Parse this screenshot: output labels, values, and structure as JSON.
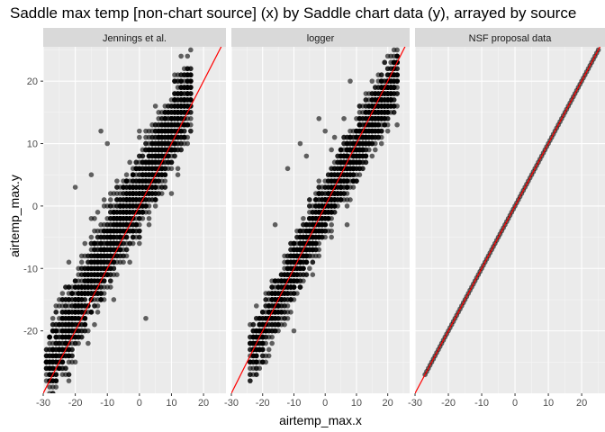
{
  "chart_data": {
    "type": "scatter",
    "title": "Saddle max temp [non-chart source] (x) by Saddle chart data (y), arrayed by source",
    "xlabel": "airtemp_max.x",
    "ylabel": "airtemp_max.y",
    "xlim": [
      -30,
      27
    ],
    "ylim": [
      -30,
      25.5
    ],
    "x_ticks": [
      -30,
      -20,
      -10,
      0,
      10,
      20
    ],
    "x_tick_labels": [
      "-30",
      "-20",
      "-10",
      "0",
      "10",
      "20"
    ],
    "y_ticks": [
      -20,
      -10,
      0,
      10,
      20
    ],
    "y_tick_labels": [
      "-20",
      "-10",
      "0",
      "10",
      "20"
    ],
    "point_color": "#000000",
    "point_alpha": 0.6,
    "reference_line": {
      "slope": 1,
      "intercept": 0,
      "color": "#ff0000"
    },
    "grid": true,
    "facets": [
      {
        "label": "Jennings et al.",
        "trend_sample": [
          [
            -29,
            -26
          ],
          [
            -25,
            -22
          ],
          [
            -20,
            -17
          ],
          [
            -15,
            -12
          ],
          [
            -10,
            -7
          ],
          [
            -5,
            -2
          ],
          [
            0,
            2
          ],
          [
            5,
            7
          ],
          [
            10,
            12
          ],
          [
            15,
            18
          ]
        ],
        "x_range": [
          -29,
          16
        ],
        "scatter_sd": 3,
        "outliers": [
          [
            -22,
            -27
          ],
          [
            -12,
            12
          ],
          [
            -10,
            10
          ],
          [
            -20,
            3
          ],
          [
            -15,
            5
          ],
          [
            0,
            12
          ],
          [
            2,
            -18
          ]
        ]
      },
      {
        "label": "logger",
        "trend_sample": [
          [
            -24,
            -24
          ],
          [
            -20,
            -20
          ],
          [
            -15,
            -15
          ],
          [
            -10,
            -10
          ],
          [
            -5,
            -5
          ],
          [
            0,
            0
          ],
          [
            5,
            5
          ],
          [
            10,
            9
          ],
          [
            15,
            14
          ],
          [
            20,
            18
          ],
          [
            22,
            20
          ]
        ],
        "x_range": [
          -24,
          23
        ],
        "scatter_sd": 2.2,
        "outliers": [
          [
            -12,
            6
          ],
          [
            -8,
            10
          ],
          [
            -6,
            8
          ],
          [
            0,
            12
          ],
          [
            -10,
            -20
          ],
          [
            8,
            20
          ],
          [
            -16,
            -3
          ],
          [
            -2,
            14
          ]
        ]
      },
      {
        "label": "NSF proposal data",
        "trend_sample": [
          [
            -27,
            -27
          ],
          [
            -20,
            -20
          ],
          [
            -10,
            -10
          ],
          [
            0,
            0
          ],
          [
            10,
            10
          ],
          [
            20,
            20
          ],
          [
            25,
            25
          ]
        ],
        "x_range": [
          -27,
          25
        ],
        "scatter_sd": 0,
        "outliers": []
      }
    ]
  }
}
